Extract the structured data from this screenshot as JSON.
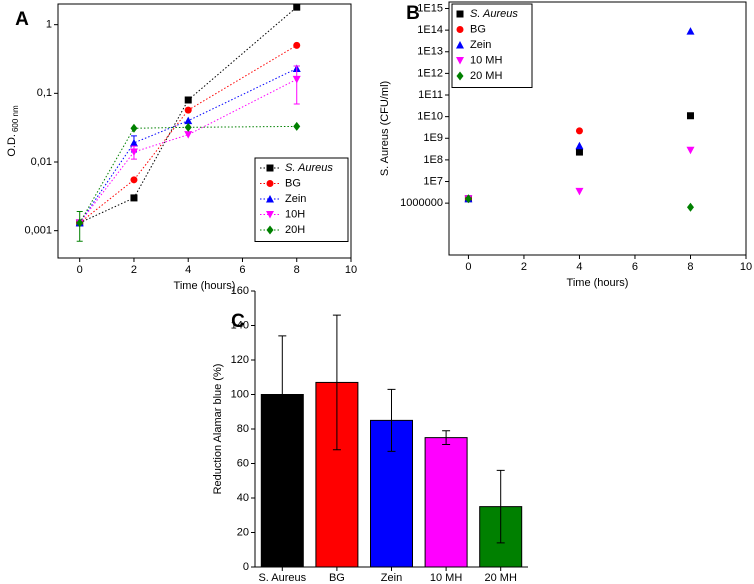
{
  "chart_data": [
    {
      "type": "line",
      "panel_label": "A",
      "xlabel": "Time (hours)",
      "ylabel": "O.D.",
      "ylabel_sub": "600 nm",
      "log_y": true,
      "x": [
        0,
        2,
        4,
        8
      ],
      "xlim": [
        -0.8,
        10
      ],
      "xticks": [
        0,
        2,
        4,
        6,
        8,
        10
      ],
      "ylim": [
        0.0004,
        2
      ],
      "yticks": [
        {
          "value": 0.001,
          "label": "0,001"
        },
        {
          "value": 0.01,
          "label": "0,01"
        },
        {
          "value": 0.1,
          "label": "0,1"
        },
        1
      ],
      "series": [
        {
          "name": "S. Aureus",
          "color": "#000000",
          "marker": "square",
          "values": [
            0.0013,
            0.003,
            0.08,
            1.8
          ],
          "errors": [
            null,
            null,
            null,
            null
          ]
        },
        {
          "name": "BG",
          "color": "#ff0000",
          "marker": "circle",
          "values": [
            0.0013,
            0.0055,
            0.057,
            0.5
          ],
          "errors": [
            null,
            null,
            null,
            null
          ]
        },
        {
          "name": "Zein",
          "color": "#0000ff",
          "marker": "triangle",
          "values": [
            0.0013,
            0.019,
            0.04,
            0.23
          ],
          "errors": [
            null,
            0.005,
            null,
            0.02
          ]
        },
        {
          "name": "10H",
          "color": "#ff00ff",
          "marker": "triangle-down",
          "values": [
            0.0013,
            0.014,
            0.025,
            0.16
          ],
          "errors": [
            null,
            0.003,
            null,
            0.09
          ]
        },
        {
          "name": "20H",
          "color": "#008000",
          "marker": "diamond",
          "values": [
            0.0013,
            0.031,
            0.032,
            0.033
          ],
          "errors": [
            0.0006,
            null,
            null,
            null
          ]
        }
      ]
    },
    {
      "type": "scatter",
      "panel_label": "B",
      "xlabel": "Time (hours)",
      "ylabel": "S. Aureus (CFU/ml)",
      "log_y": true,
      "x": [
        0,
        4,
        8
      ],
      "xlim": [
        -0.7,
        10
      ],
      "xticks": [
        0,
        2,
        4,
        6,
        8,
        10
      ],
      "ylim": [
        4000,
        2000000000000000.0
      ],
      "yticks": [
        1000000,
        {
          "value": 10000000.0,
          "label": "1E7"
        },
        {
          "value": 100000000.0,
          "label": "1E8"
        },
        {
          "value": 1000000000.0,
          "label": "1E9"
        },
        {
          "value": 10000000000.0,
          "label": "1E10"
        },
        {
          "value": 100000000000.0,
          "label": "1E11"
        },
        {
          "value": 1000000000000.0,
          "label": "1E12"
        },
        {
          "value": 10000000000000.0,
          "label": "1E13"
        },
        {
          "value": 100000000000000.0,
          "label": "1E14"
        },
        {
          "value": 1000000000000000.0,
          "label": "1E15"
        }
      ],
      "series": [
        {
          "name": "S. Aureus",
          "color": "#000000",
          "marker": "square",
          "values": [
            1600000,
            230000000,
            11000000000
          ]
        },
        {
          "name": "BG",
          "color": "#ff0000",
          "marker": "circle",
          "values": [
            1600000,
            2200000000,
            null
          ]
        },
        {
          "name": "Zein",
          "color": "#0000ff",
          "marker": "triangle",
          "values": [
            1600000,
            450000000,
            90000000000000
          ]
        },
        {
          "name": "10 MH",
          "color": "#ff00ff",
          "marker": "triangle-down",
          "values": [
            1600000,
            3500000,
            280000000
          ]
        },
        {
          "name": "20 MH",
          "color": "#008000",
          "marker": "diamond",
          "values": [
            1600000,
            null,
            650000
          ]
        }
      ]
    },
    {
      "type": "bar",
      "panel_label": "C",
      "ylabel": "Reduction Alamar blue (%)",
      "categories": [
        "S. Aureus",
        "BG",
        "Zein",
        "10 MH",
        "20 MH"
      ],
      "values": [
        100,
        107,
        85,
        75,
        35
      ],
      "errors": [
        34,
        39,
        18,
        4,
        21
      ],
      "colors": [
        "#000000",
        "#ff0000",
        "#0000ff",
        "#ff00ff",
        "#008000"
      ],
      "ylim": [
        0,
        160
      ],
      "yticks": [
        0,
        20,
        40,
        60,
        80,
        100,
        120,
        140,
        160
      ]
    }
  ]
}
